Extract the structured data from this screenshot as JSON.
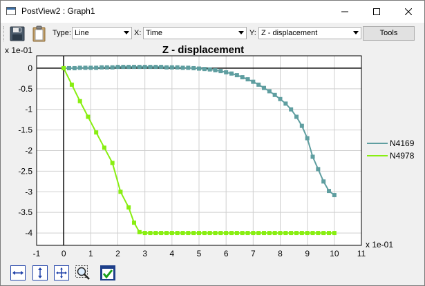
{
  "window": {
    "title": "PostView2 : Graph1",
    "minimize_icon": "minimize-icon",
    "maximize_icon": "maximize-icon",
    "close_icon": "close-icon"
  },
  "toolbar": {
    "save_icon": "save-icon",
    "clipboard_icon": "clipboard-icon",
    "type_label": "Type:",
    "type_value": "Line",
    "x_label": "X:",
    "x_value": "Time",
    "y_label": "Y:",
    "y_value": "Z - displacement",
    "tools_label": "Tools"
  },
  "bottom_toolbar": {
    "icons": [
      "fit-width-icon",
      "fit-height-icon",
      "fit-all-icon",
      "zoom-select-icon",
      "toggle-check-icon"
    ]
  },
  "chart_data": {
    "type": "line",
    "title": "Z - displacement",
    "y_scale_label": "x 1e-01",
    "x_scale_label": "x 1e-01",
    "xlim": [
      -1,
      11
    ],
    "ylim": [
      -4.3,
      0.3
    ],
    "x_ticks": [
      "-1",
      "0",
      "1",
      "2",
      "3",
      "4",
      "5",
      "6",
      "7",
      "8",
      "9",
      "10",
      "11"
    ],
    "y_ticks": [
      "0",
      "-0.5",
      "-1",
      "-1.5",
      "-2",
      "-2.5",
      "-3",
      "-3.5",
      "-4"
    ],
    "grid": true,
    "legend_position": "right",
    "series": [
      {
        "name": "N4169",
        "color": "#5f9ea0",
        "x": [
          0,
          0.2,
          0.4,
          0.6,
          0.8,
          1.0,
          1.2,
          1.4,
          1.6,
          1.8,
          2.0,
          2.2,
          2.4,
          2.6,
          2.8,
          3.0,
          3.2,
          3.4,
          3.6,
          3.8,
          4.0,
          4.2,
          4.4,
          4.6,
          4.8,
          5.0,
          5.2,
          5.4,
          5.6,
          5.8,
          6.0,
          6.2,
          6.4,
          6.6,
          6.8,
          7.0,
          7.2,
          7.4,
          7.6,
          7.8,
          8.0,
          8.2,
          8.4,
          8.6,
          8.8,
          9.0,
          9.2,
          9.4,
          9.6,
          9.8,
          10.0
        ],
        "y": [
          0,
          0.0,
          0.0,
          0.01,
          0.01,
          0.01,
          0.01,
          0.02,
          0.02,
          0.02,
          0.03,
          0.03,
          0.03,
          0.03,
          0.03,
          0.03,
          0.03,
          0.03,
          0.03,
          0.02,
          0.02,
          0.02,
          0.01,
          0.01,
          0.0,
          -0.01,
          -0.02,
          -0.03,
          -0.05,
          -0.07,
          -0.1,
          -0.13,
          -0.17,
          -0.22,
          -0.27,
          -0.33,
          -0.4,
          -0.48,
          -0.56,
          -0.65,
          -0.75,
          -0.86,
          -1.0,
          -1.18,
          -1.4,
          -1.7,
          -2.15,
          -2.45,
          -2.75,
          -2.98,
          -3.08
        ]
      },
      {
        "name": "N4978",
        "color": "#88ee11",
        "x": [
          0,
          0.3,
          0.6,
          0.9,
          1.2,
          1.5,
          1.8,
          2.1,
          2.4,
          2.6,
          2.8,
          3.0,
          3.2,
          3.4,
          3.6,
          3.8,
          4.0,
          4.2,
          4.4,
          4.6,
          4.8,
          5.0,
          5.2,
          5.4,
          5.6,
          5.8,
          6.0,
          6.2,
          6.4,
          6.6,
          6.8,
          7.0,
          7.2,
          7.4,
          7.6,
          7.8,
          8.0,
          8.2,
          8.4,
          8.6,
          8.8,
          9.0,
          9.2,
          9.4,
          9.6,
          9.8,
          10.0
        ],
        "y": [
          0,
          -0.4,
          -0.8,
          -1.18,
          -1.56,
          -1.93,
          -2.3,
          -3.0,
          -3.38,
          -3.75,
          -3.98,
          -4.0,
          -4.0,
          -4.0,
          -4.0,
          -4.0,
          -4.0,
          -4.0,
          -4.0,
          -4.0,
          -4.0,
          -4.0,
          -4.0,
          -4.0,
          -4.0,
          -4.0,
          -4.0,
          -4.0,
          -4.0,
          -4.0,
          -4.0,
          -4.0,
          -4.0,
          -4.0,
          -4.0,
          -4.0,
          -4.0,
          -4.0,
          -4.0,
          -4.0,
          -4.0,
          -4.0,
          -4.0,
          -4.0,
          -4.0,
          -4.0,
          -4.0
        ]
      }
    ]
  }
}
